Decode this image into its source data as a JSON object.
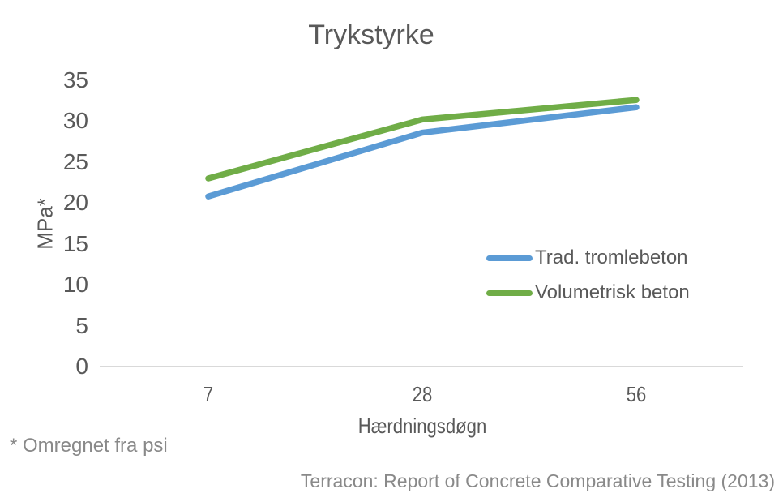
{
  "chart_data": {
    "type": "line",
    "title": "Trykstyrke",
    "xlabel": "Hærdningsdøgn",
    "ylabel": "MPa*",
    "x_categories": [
      "7",
      "28",
      "56"
    ],
    "y_ticks": [
      "0",
      "5",
      "10",
      "15",
      "20",
      "25",
      "30",
      "35"
    ],
    "ylim": [
      0,
      35
    ],
    "grid": false,
    "legend_position": "center-right",
    "series": [
      {
        "name": "Trad. tromlebeton",
        "color": "#5b9bd5",
        "values": [
          20.8,
          28.6,
          31.7
        ]
      },
      {
        "name": "Volumetrisk beton",
        "color": "#70ad47",
        "values": [
          23.0,
          30.2,
          32.6
        ]
      }
    ]
  },
  "footnote": "* Omregnet fra psi",
  "source": "Terracon: Report of Concrete Comparative Testing (2013)",
  "colors": {
    "axis_line": "#d9d9d9",
    "title_text": "#595959",
    "tick_text": "#595959",
    "muted_text": "#898989"
  }
}
